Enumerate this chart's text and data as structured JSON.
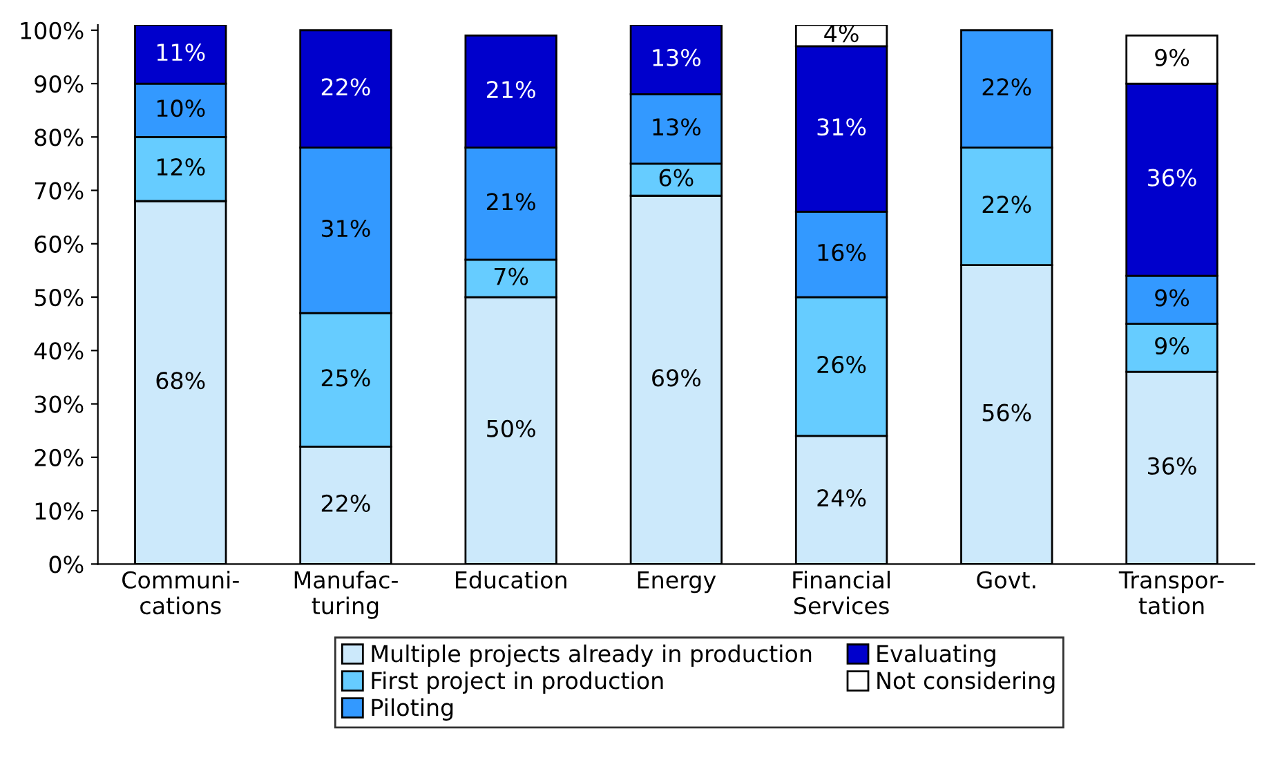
{
  "chart_data": {
    "type": "bar",
    "stacked": true,
    "categories": [
      "Communi-\ncations",
      "Manufac-\nturing",
      "Education",
      "Energy",
      "Financial\nServices",
      "Govt.",
      "Transpor-\ntation"
    ],
    "series": [
      {
        "name": "Multiple projects already in production",
        "color": "#cce9fb",
        "values": [
          68,
          22,
          50,
          69,
          24,
          56,
          36
        ],
        "value_labels": [
          "68%",
          "22%",
          "50%",
          "69%",
          "24%",
          "56%",
          "36%"
        ]
      },
      {
        "name": "First project in production",
        "color": "#66ccff",
        "values": [
          12,
          25,
          7,
          6,
          26,
          22,
          9
        ],
        "value_labels": [
          "12%",
          "25%",
          "7%",
          "6%",
          "26%",
          "22%",
          "9%"
        ]
      },
      {
        "name": "Piloting",
        "color": "#3399ff",
        "values": [
          10,
          31,
          21,
          13,
          16,
          22,
          9
        ],
        "value_labels": [
          "10%",
          "31%",
          "21%",
          "13%",
          "16%",
          "22%",
          "9%"
        ]
      },
      {
        "name": "Evaluating",
        "color": "#0000cc",
        "values": [
          11,
          22,
          21,
          13,
          31,
          null,
          36
        ],
        "value_labels": [
          "11%",
          "22%",
          "21%",
          "13%",
          "31%",
          null,
          "36%"
        ]
      },
      {
        "name": "Not considering",
        "color": "#ffffff",
        "values": [
          null,
          null,
          null,
          null,
          4,
          null,
          9
        ],
        "value_labels": [
          null,
          null,
          null,
          null,
          "4%",
          null,
          "9%"
        ]
      }
    ],
    "ylim": [
      0,
      101
    ],
    "yticks": [
      {
        "value": 0,
        "label": "0%"
      },
      {
        "value": 10,
        "label": "10%"
      },
      {
        "value": 20,
        "label": "20%"
      },
      {
        "value": 30,
        "label": "30%"
      },
      {
        "value": 40,
        "label": "40%"
      },
      {
        "value": 50,
        "label": "50%"
      },
      {
        "value": 60,
        "label": "60%"
      },
      {
        "value": 70,
        "label": "70%"
      },
      {
        "value": 80,
        "label": "80%"
      },
      {
        "value": 90,
        "label": "90%"
      },
      {
        "value": 100,
        "label": "100%"
      }
    ],
    "grid": false,
    "legend": "bottom"
  }
}
